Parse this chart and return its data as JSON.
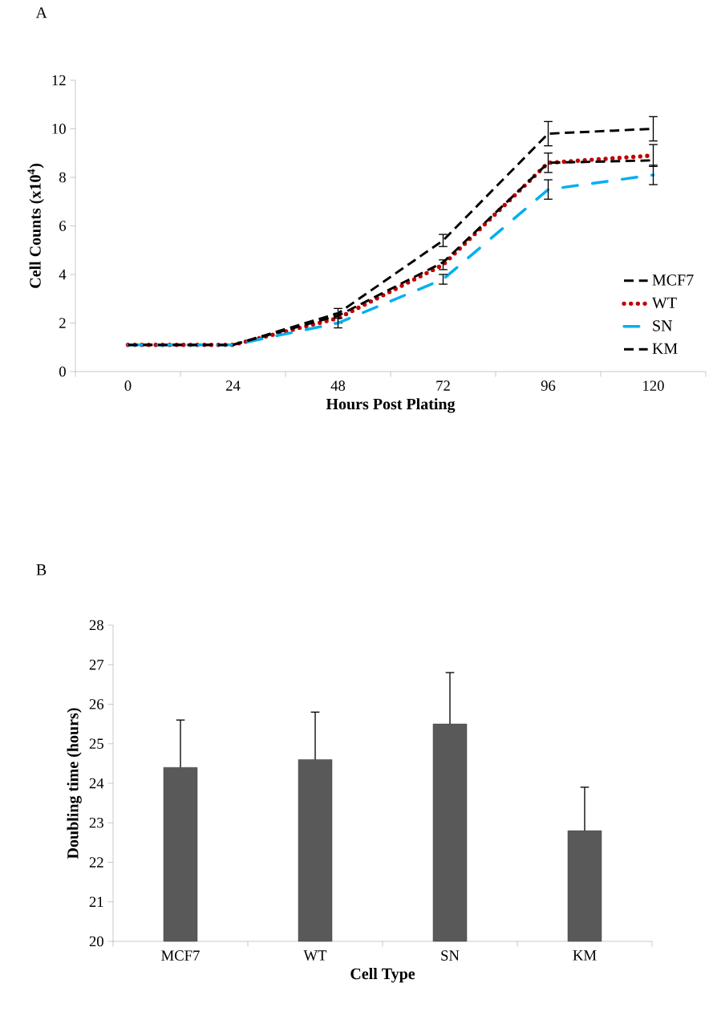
{
  "chart_data": [
    {
      "type": "line",
      "title": "A",
      "xlabel": "Hours Post Plating",
      "ylabel": "Cell Counts (x10$^{4}$)",
      "categories": [
        "0",
        "24",
        "48",
        "72",
        "96",
        "120"
      ],
      "ylim": [
        0,
        12
      ],
      "yticks": [
        0,
        2,
        4,
        6,
        8,
        10,
        12
      ],
      "legend": "bottom right",
      "series": [
        {
          "name": "MCF7",
          "color": "#000000",
          "line_style": "dashed",
          "values": [
            1.1,
            1.1,
            2.4,
            5.4,
            9.8,
            10.0
          ],
          "errors": [
            null,
            null,
            0.2,
            0.25,
            0.5,
            0.5
          ]
        },
        {
          "name": "WT",
          "color": "#c00000",
          "line_style": "dotted",
          "values": [
            1.1,
            1.1,
            2.2,
            4.4,
            8.6,
            8.9
          ],
          "errors": [
            null,
            null,
            0.2,
            0.2,
            0.4,
            0.45
          ]
        },
        {
          "name": "SN",
          "color": "#00b0f0",
          "line_style": "dashdot",
          "values": [
            1.1,
            1.1,
            2.0,
            3.8,
            7.5,
            8.1
          ],
          "errors": [
            null,
            null,
            0.2,
            0.2,
            0.4,
            0.4
          ]
        },
        {
          "name": "KM",
          "color": "#000000",
          "line_style": "dashed",
          "values": [
            1.1,
            1.1,
            2.3,
            4.5,
            8.6,
            8.7
          ]
        }
      ]
    },
    {
      "type": "bar",
      "title": "B",
      "xlabel": "Cell Type",
      "ylabel": "Doubling time (hours)",
      "categories": [
        "MCF7",
        "WT",
        "SN",
        "KM"
      ],
      "values": [
        24.4,
        24.6,
        25.5,
        22.8
      ],
      "errors": [
        [
          24.4,
          25.6
        ],
        [
          24.6,
          25.8
        ],
        [
          25.5,
          26.8
        ],
        [
          22.8,
          23.9
        ]
      ],
      "color": "#595959",
      "ylim": [
        20,
        28
      ],
      "yticks": [
        20,
        21,
        22,
        23,
        24,
        25,
        26,
        27,
        28
      ]
    }
  ]
}
